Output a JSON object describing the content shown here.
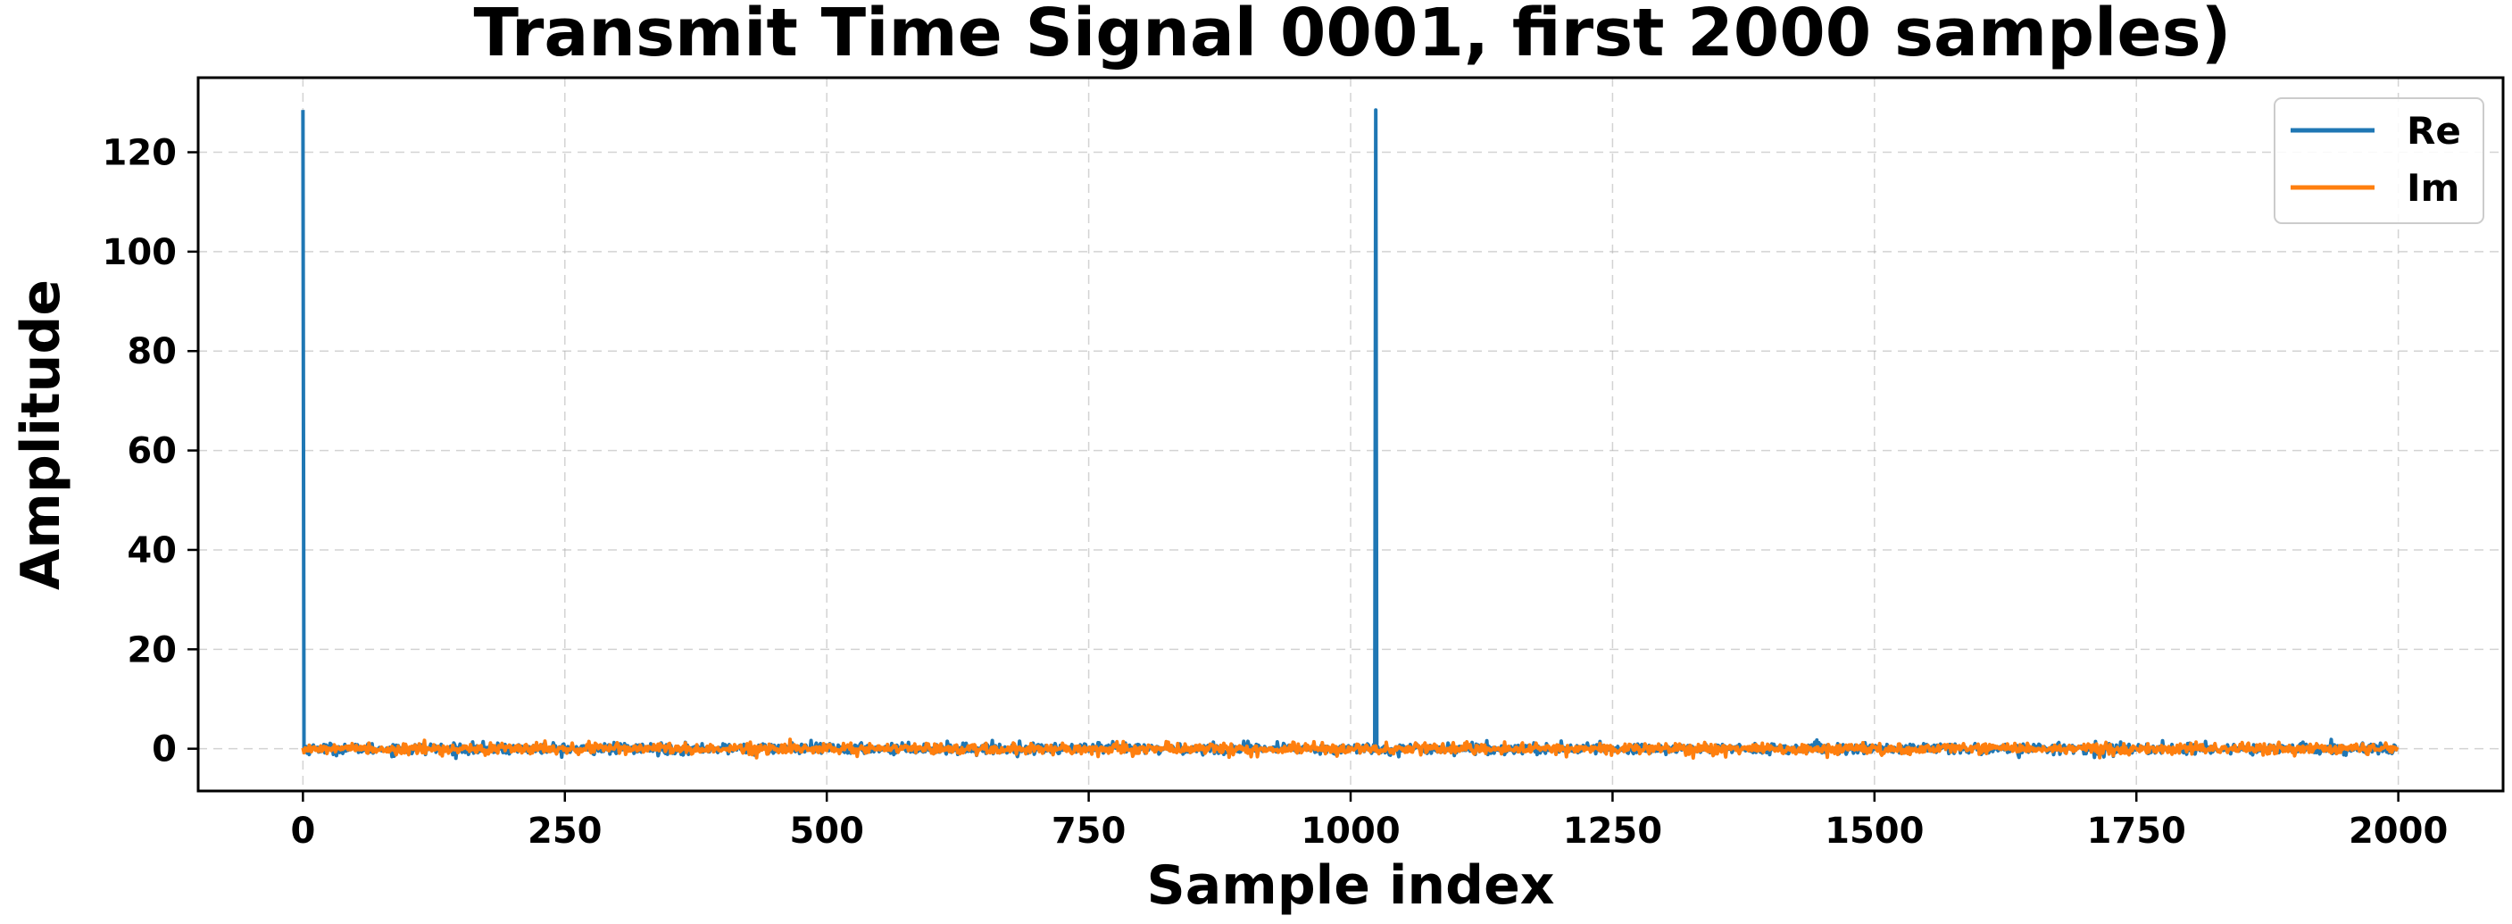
{
  "chart_data": {
    "type": "line",
    "title": "Transmit Time Signal 0001, first 2000 samples)",
    "xlabel": "Sample index",
    "ylabel": "Amplitude",
    "xlim": [
      -100,
      2100
    ],
    "ylim": [
      -8.5,
      135
    ],
    "x_ticks": [
      0,
      250,
      500,
      750,
      1000,
      1250,
      1500,
      1750,
      2000
    ],
    "y_ticks": [
      0,
      20,
      40,
      60,
      80,
      100,
      120
    ],
    "grid": true,
    "legend_position": "top-right",
    "n_samples": 2000,
    "series": [
      {
        "name": "Re",
        "color": "#1f77b4",
        "baseline": 0,
        "noise_amplitude": 1.0,
        "spikes": [
          {
            "x": 0,
            "y": 128.5
          },
          {
            "x": 1024,
            "y": 128.5
          }
        ]
      },
      {
        "name": "Im",
        "color": "#ff7f0e",
        "baseline": 0,
        "noise_amplitude": 1.0,
        "spikes": []
      }
    ]
  }
}
